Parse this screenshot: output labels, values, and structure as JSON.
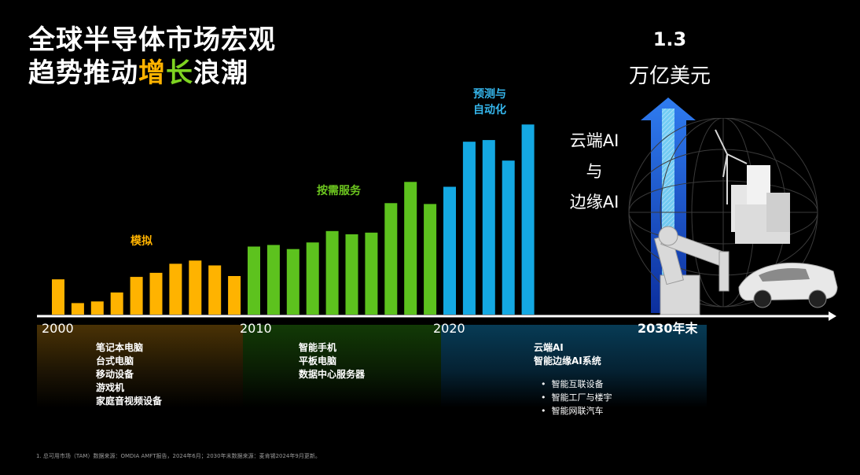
{
  "title": {
    "line1": "全球半导体市场宏观",
    "line2_pre": "趋势推动",
    "line2_hl1": "增",
    "line2_hl2": "长",
    "line2_post": "浪潮"
  },
  "chart_data": {
    "type": "bar",
    "title": "全球半导体市场宏观趋势推动增长浪潮",
    "series": [
      {
        "name": "模拟",
        "color": "#ffb300",
        "values": [
          43,
          14,
          16,
          27,
          46,
          51,
          62,
          66,
          60,
          47
        ]
      },
      {
        "name": "按需服务",
        "color": "#5dc21e",
        "values": [
          83,
          85,
          80,
          88,
          102,
          98,
          100,
          136,
          162,
          135
        ]
      },
      {
        "name": "预测与自动化",
        "color": "#14a8e2",
        "values": [
          156,
          211,
          213,
          188,
          232
        ]
      }
    ],
    "axis_ticks": [
      "2000",
      "2010",
      "2020",
      "2030年末"
    ],
    "ylim": [
      0,
      240
    ],
    "legend": "inline"
  },
  "eras": {
    "analog": "模拟",
    "demand": "按需服务",
    "predict_line1": "预测与",
    "predict_line2": "自动化"
  },
  "panels": {
    "p1": [
      "笔记本电脑",
      "台式电脑",
      "移动设备",
      "游戏机",
      "家庭音视频设备"
    ],
    "p2": [
      "智能手机",
      "平板电脑",
      "数据中心服务器"
    ],
    "p3": [
      "云端AI",
      "智能边缘AI系统"
    ],
    "p3_sub": [
      "智能互联设备",
      "智能工厂与楼宇",
      "智能网联汽车"
    ]
  },
  "highlight": {
    "value": "1.3",
    "unit": "万亿美元",
    "line1": "云端AI",
    "line2": "与",
    "line3": "边缘AI"
  },
  "footnote": "1.    总可用市场（TAM）数据来源：OMDIA AMFT报告，2024年6月；2030年末数据来源：麦肯锡2024年9月更新。",
  "colors": {
    "analog": "#ffb300",
    "demand": "#5dc21e",
    "predict": "#14a8e2",
    "arrow": "#1e63e8"
  }
}
